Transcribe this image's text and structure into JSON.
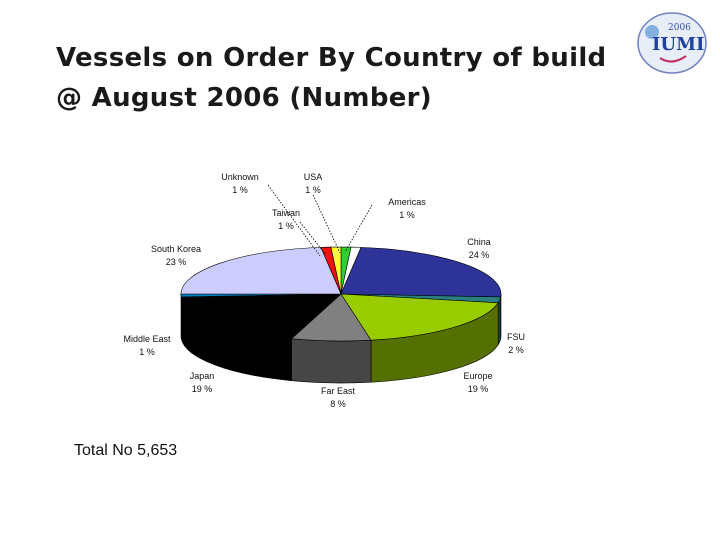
{
  "slide": {
    "title": "Vessels on Order By Country of build @ August 2006 (Number)",
    "total_label": "Total No 5,653",
    "logo": {
      "year": "2006",
      "text": "IUMI",
      "icon": "iumi-logo-icon"
    }
  },
  "chart_data": {
    "type": "pie",
    "title": "Vessels on Order By Country of build @ August 2006 (Number)",
    "total": "Total No 5,653",
    "slices": [
      {
        "name": "USA",
        "pct_label": "1 %",
        "value": 1,
        "color": "#33cc33"
      },
      {
        "name": "Americas",
        "pct_label": "1 %",
        "value": 1,
        "color": "#ffffff"
      },
      {
        "name": "China",
        "pct_label": "24 %",
        "value": 24,
        "color": "#2e3399"
      },
      {
        "name": "FSU",
        "pct_label": "2 %",
        "value": 2,
        "color": "#2a8080"
      },
      {
        "name": "Europe",
        "pct_label": "19 %",
        "value": 19,
        "color": "#99cc00"
      },
      {
        "name": "Far East",
        "pct_label": "8 %",
        "value": 8,
        "color": "#808080"
      },
      {
        "name": "Japan",
        "pct_label": "19 %",
        "value": 19,
        "color": "#000000"
      },
      {
        "name": "Middle East",
        "pct_label": "1 %",
        "value": 1,
        "color": "#0080c0"
      },
      {
        "name": "South Korea",
        "pct_label": "23 %",
        "value": 23,
        "color": "#ccccff"
      },
      {
        "name": "Unknown",
        "pct_label": "1 %",
        "value": 1,
        "color": "#ee1111"
      },
      {
        "name": "Taiwan",
        "pct_label": "1 %",
        "value": 1,
        "color": "#ffff33"
      }
    ]
  }
}
